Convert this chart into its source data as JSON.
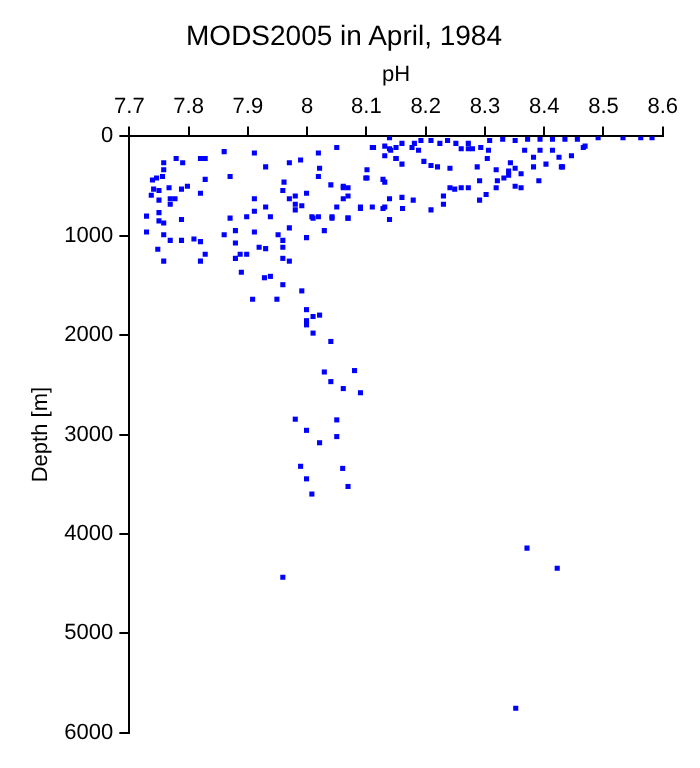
{
  "chart_data": {
    "type": "scatter",
    "title": "MODS2005 in April, 1984",
    "xlabel": "pH",
    "ylabel": "Depth [m]",
    "xlim": [
      7.7,
      8.6
    ],
    "xticks": [
      7.7,
      7.8,
      7.9,
      {
        "value": 8,
        "label": "8"
      },
      8.1,
      8.2,
      8.3,
      8.4,
      8.5,
      8.6
    ],
    "ylim": [
      6000,
      0
    ],
    "yticks": [
      0,
      1000,
      2000,
      3000,
      4000,
      5000,
      6000
    ],
    "grid": false,
    "legend": false,
    "marker": "square",
    "series": [
      {
        "color": "#0000ff",
        "x": [
          7.758,
          7.758,
          7.756,
          7.746,
          7.739,
          7.741,
          7.75,
          7.737,
          7.75,
          7.767,
          7.769,
          7.777,
          7.769,
          7.729,
          7.75,
          7.75,
          7.758,
          7.729,
          7.758,
          7.748,
          7.758,
          7.769,
          7.788,
          7.788,
          7.798,
          7.788,
          7.779,
          7.79,
          7.82,
          7.828,
          7.828,
          7.82,
          7.809,
          7.82,
          7.828,
          7.82,
          7.86,
          7.87,
          7.87,
          7.86,
          7.879,
          7.879,
          7.879,
          7.887,
          7.898,
          7.889,
          7.908,
          7.898,
          7.911,
          7.911,
          7.911,
          7.93,
          7.93,
          7.938,
          7.911,
          7.919,
          7.93,
          7.928,
          7.938,
          7.959,
          7.949,
          7.951,
          7.959,
          7.959,
          7.959,
          7.97,
          7.97,
          7.961,
          7.959,
          7.97,
          7.98,
          7.98,
          7.991,
          7.98,
          7.989,
          7.97,
          7.999,
          7.999,
          8.019,
          8.021,
          8.019,
          8.019,
          8.01,
          8.029,
          8.042,
          8.04,
          8.05,
          8.061,
          8.069,
          8.069,
          8.05,
          8.061,
          8.09,
          8.101,
          8.101,
          8.11,
          8.131,
          8.131,
          8.139,
          8.139,
          8.139,
          8.141,
          8.15,
          8.11,
          7.991,
          7.999,
          7.999,
          7.999,
          8.01,
          8.021,
          8.01,
          8.04,
          8.029,
          8.04,
          8.061,
          8.08,
          8.09,
          7.98,
          7.999,
          8.05,
          8.05,
          8.021,
          7.989,
          7.999,
          8.06,
          8.069,
          8.008,
          7.959,
          8.371,
          8.422,
          8.352,
          8.112,
          8.131,
          8.15,
          8.16,
          8.181,
          8.192,
          8.209,
          8.224,
          8.237,
          8.251,
          8.272,
          8.279,
          8.293,
          8.308,
          8.33,
          8.351,
          8.372,
          8.393,
          8.414,
          8.435,
          8.456,
          8.469,
          8.491,
          8.533,
          8.563,
          8.582,
          8.139,
          8.131,
          8.15,
          8.16,
          8.177,
          8.188,
          8.197,
          8.209,
          8.22,
          8.241,
          8.26,
          8.272,
          8.287,
          8.306,
          8.304,
          8.319,
          8.343,
          8.351,
          8.34,
          8.361,
          8.382,
          8.403,
          8.425,
          8.431,
          8.446,
          8.466,
          8.367,
          8.393,
          8.414,
          8.382,
          8.099,
          8.061,
          8.069,
          8.09,
          8.128,
          8.128,
          8.16,
          8.161,
          8.179,
          8.209,
          8.23,
          8.23,
          8.241,
          8.249,
          8.26,
          8.272,
          8.291,
          8.291,
          8.302,
          8.319,
          8.321,
          8.332,
          8.34,
          8.351,
          8.361,
          8.391,
          8.429,
          8.008,
          8.042,
          8.069
        ],
        "values": [
          265,
          335,
          404,
          418,
          439,
          530,
          544,
          592,
          641,
          516,
          627,
          627,
          683,
          802,
          767,
          850,
          871,
          962,
          990,
          1136,
          1255,
          1046,
          1046,
          836,
          502,
          530,
          223,
          265,
          223,
          223,
          432,
          572,
          1032,
          1059,
          1185,
          1255,
          153,
          404,
          822,
          990,
          1073,
          948,
          1227,
          1185,
          1185,
          1366,
          1638,
          809,
          627,
          753,
          167,
          307,
          711,
          809,
          962,
          1115,
          1129,
          1422,
          1408,
          1492,
          1638,
          990,
          1046,
          1115,
          1227,
          1255,
          920,
          460,
          544,
          627,
          599,
          683,
          697,
          739,
          237,
          265,
          572,
          1018,
          167,
          321,
          404,
          809,
          822,
          948,
          822,
          488,
          112,
          516,
          516,
          822,
          711,
          627,
          711,
          418,
          335,
          112,
          460,
          711,
          836,
          627,
          14,
          139,
          223,
          711,
          1554,
          1743,
          1854,
          1896,
          1812,
          1798,
          1979,
          2063,
          2370,
          2467,
          2537,
          2356,
          2579,
          2845,
          2957,
          2852,
          3020,
          3082,
          3319,
          3445,
          3340,
          3522,
          3598,
          4435,
          4142,
          4345,
          5753,
          112,
          98,
          112,
          70,
          70,
          42,
          42,
          70,
          42,
          70,
          70,
          125,
          112,
          42,
          28,
          42,
          28,
          28,
          28,
          28,
          28,
          98,
          14,
          14,
          14,
          14,
          125,
          195,
          223,
          279,
          112,
          139,
          251,
          293,
          307,
          321,
          125,
          125,
          307,
          139,
          223,
          335,
          265,
          321,
          390,
          376,
          307,
          279,
          209,
          307,
          195,
          112,
          139,
          139,
          139,
          209,
          418,
          502,
          599,
          725,
          432,
          725,
          613,
          725,
          641,
          739,
          599,
          683,
          516,
          530,
          516,
          516,
          446,
          641,
          585,
          516,
          446,
          418,
          349,
          502,
          516,
          446,
          307,
          809,
          809,
          822
        ]
      }
    ]
  }
}
